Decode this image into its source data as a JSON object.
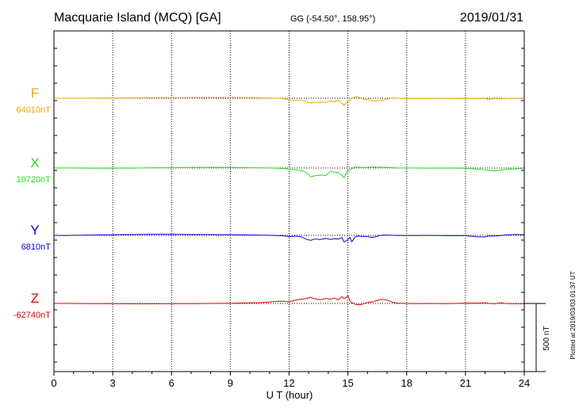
{
  "header": {
    "station": "Macquarie Island (MCQ)  [GA]",
    "coords": "GG (-54.50°, 158.95°)",
    "date": "2019/01/31"
  },
  "footer": {
    "plotted": "Plotted at 2019/03/03 01:37 UT"
  },
  "scale_label": "500 nT",
  "chart_data": {
    "type": "line",
    "title": "Macquarie Island (MCQ)  [GA]",
    "xlabel": "U T (hour)",
    "xlim": [
      0,
      24
    ],
    "xticks": [
      "0",
      "3",
      "6",
      "9",
      "12",
      "15",
      "18",
      "21",
      "24"
    ],
    "grid": true,
    "scale_bar_nT": 500,
    "units_note": "y values are deviations in nT from each series baseline (positive up)",
    "series": [
      {
        "name": "F",
        "baseline_label": "64010nT",
        "color": "#f0a800",
        "x": [
          0,
          1,
          2,
          3,
          4,
          5,
          6,
          7,
          8,
          9,
          10,
          10.5,
          11,
          11.5,
          11.8,
          12,
          12.3,
          12.6,
          12.9,
          13.1,
          13.3,
          13.6,
          13.9,
          14.1,
          14.3,
          14.5,
          14.7,
          14.8,
          14.9,
          15,
          15.1,
          15.2,
          15.35,
          15.5,
          15.7,
          16,
          16.3,
          16.6,
          16.8,
          17,
          17.3,
          17.6,
          18,
          18.5,
          19,
          20,
          21,
          21.5,
          22,
          22.2,
          22.5,
          22.8,
          23,
          23.5,
          24
        ],
        "y": [
          0,
          0,
          3,
          2,
          5,
          8,
          9,
          10,
          12,
          12,
          8,
          5,
          2,
          0,
          -10,
          -20,
          -30,
          -25,
          -55,
          -70,
          -60,
          -55,
          -60,
          -40,
          -50,
          -30,
          -70,
          -105,
          -80,
          -30,
          -40,
          0,
          15,
          25,
          -10,
          -20,
          -40,
          -35,
          -30,
          -10,
          5,
          0,
          -5,
          0,
          -3,
          0,
          -5,
          0,
          -5,
          -15,
          -5,
          -10,
          0,
          -5,
          0
        ],
        "offset_nT": 0
      },
      {
        "name": "X",
        "baseline_label": "10720nT",
        "color": "#22dd22",
        "x": [
          0,
          1,
          2,
          3,
          4,
          5,
          6,
          7,
          8,
          9,
          10,
          10.5,
          11,
          11.5,
          11.8,
          12,
          12.3,
          12.6,
          12.9,
          13.1,
          13.3,
          13.6,
          13.9,
          14.1,
          14.3,
          14.5,
          14.7,
          14.8,
          14.9,
          15,
          15.1,
          15.2,
          15.35,
          15.5,
          15.7,
          16,
          16.3,
          16.6,
          16.8,
          17,
          17.3,
          17.6,
          18,
          18.5,
          19,
          20,
          21,
          21.5,
          22,
          22.2,
          22.5,
          22.8,
          23,
          23.5,
          24
        ],
        "y": [
          0,
          0,
          -3,
          -2,
          -1,
          2,
          5,
          8,
          10,
          8,
          5,
          2,
          0,
          -5,
          -10,
          -20,
          -25,
          -35,
          -70,
          -130,
          -115,
          -105,
          -110,
          -50,
          -60,
          -65,
          -110,
          -140,
          -85,
          -40,
          -30,
          -10,
          15,
          15,
          8,
          10,
          15,
          12,
          8,
          10,
          5,
          0,
          0,
          0,
          -3,
          0,
          -5,
          -15,
          -25,
          -35,
          -45,
          -30,
          -20,
          -15,
          -5
        ],
        "offset_nT": 0
      },
      {
        "name": "Y",
        "baseline_label": "6810nT",
        "color": "#0000dd",
        "x": [
          0,
          0.5,
          1,
          2,
          3,
          4,
          5,
          6,
          7,
          8,
          9,
          10,
          10.5,
          11,
          11.5,
          11.8,
          12,
          12.3,
          12.6,
          12.9,
          13.1,
          13.3,
          13.6,
          13.9,
          14.1,
          14.3,
          14.5,
          14.7,
          14.8,
          14.9,
          15,
          15.1,
          15.2,
          15.35,
          15.5,
          15.7,
          16,
          16.3,
          16.6,
          16.8,
          17,
          17.3,
          17.6,
          18,
          18.5,
          19,
          20,
          21,
          21.5,
          22,
          22.2,
          22.5,
          22.8,
          23,
          23.5,
          24
        ],
        "y": [
          0,
          -2,
          0,
          5,
          8,
          12,
          15,
          15,
          12,
          10,
          8,
          5,
          2,
          0,
          -5,
          -10,
          -20,
          -10,
          -20,
          -60,
          -75,
          -55,
          -60,
          -45,
          -60,
          -50,
          -55,
          -35,
          -95,
          -85,
          -60,
          -30,
          -95,
          -30,
          -10,
          -15,
          -20,
          -30,
          -5,
          5,
          3,
          0,
          -2,
          -3,
          -3,
          0,
          -5,
          -5,
          -20,
          -25,
          -10,
          -10,
          -5,
          5,
          10,
          10
        ],
        "offset_nT": 0
      },
      {
        "name": "Z",
        "baseline_label": "-62740nT",
        "color": "#dd0000",
        "x": [
          0,
          1,
          2,
          3,
          4,
          5,
          6,
          7,
          8,
          9,
          10,
          10.5,
          11,
          11.5,
          11.8,
          12,
          12.3,
          12.6,
          12.9,
          13.1,
          13.3,
          13.6,
          13.9,
          14.1,
          14.3,
          14.5,
          14.7,
          14.8,
          14.9,
          15,
          15.1,
          15.2,
          15.35,
          15.5,
          15.7,
          16,
          16.3,
          16.6,
          16.8,
          17,
          17.3,
          17.6,
          18,
          18.5,
          19,
          20,
          21,
          21.5,
          22,
          22.2,
          22.5,
          22.8,
          23,
          23.5,
          24
        ],
        "y": [
          0,
          0,
          -3,
          -3,
          -5,
          -5,
          -3,
          -2,
          0,
          3,
          8,
          12,
          20,
          35,
          30,
          25,
          45,
          60,
          75,
          90,
          70,
          55,
          75,
          60,
          80,
          55,
          100,
          70,
          85,
          120,
          40,
          15,
          -10,
          -20,
          -15,
          15,
          25,
          55,
          60,
          50,
          15,
          5,
          0,
          -3,
          0,
          -3,
          5,
          5,
          10,
          0,
          -5,
          10,
          0,
          -5,
          -3
        ],
        "offset_nT": 0
      }
    ]
  }
}
